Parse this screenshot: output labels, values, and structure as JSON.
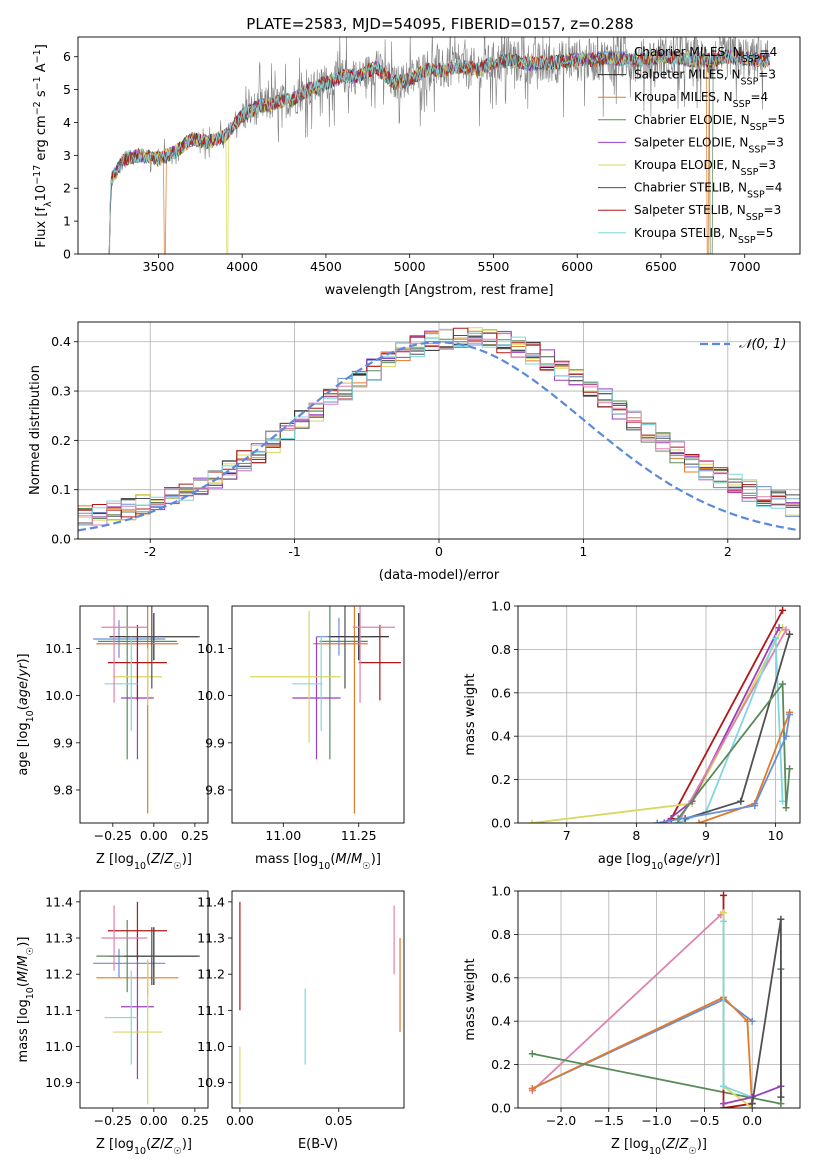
{
  "title": "PLATE=2583, MJD=54095, FIBERID=0157, z=0.288",
  "colors": {
    "Chabrier MILES": "#6a8fd8",
    "Salpeter MILES": "#2a2a2a",
    "Kroupa MILES": "#e07b2a",
    "Chabrier ELODIE": "#5a8a5a",
    "Salpeter ELODIE": "#9a3fc0",
    "Kroupa ELODIE": "#d8d860",
    "Chabrier STELIB": "#505050",
    "Salpeter STELIB": "#b01818",
    "Kroupa STELIB": "#7fd8e0",
    "data": "#808080",
    "pink": "#e080b0",
    "normal": "#5a8ad8"
  },
  "chart_data": [
    {
      "id": "spectrum",
      "type": "line",
      "title": "PLATE=2583, MJD=54095, FIBERID=0157, z=0.288",
      "xlabel": "wavelength [Angstrom, rest frame]",
      "ylabel": "Flux [fλ10⁻¹⁷ erg cm⁻² s⁻¹ A⁻¹]",
      "xlim": [
        3020,
        7330
      ],
      "ylim": [
        0,
        6.6
      ],
      "xticks": [
        3500,
        4000,
        4500,
        5000,
        5500,
        6000,
        6500,
        7000
      ],
      "yticks": [
        0,
        1,
        2,
        3,
        4,
        5,
        6
      ],
      "continuum": {
        "x": [
          3200,
          3220,
          3300,
          3400,
          3500,
          3600,
          3700,
          3800,
          3900,
          4000,
          4100,
          4200,
          4300,
          4400,
          4500,
          4600,
          4700,
          4800,
          4900,
          5000,
          5100,
          5200,
          5300,
          5400,
          5500,
          5600,
          5700,
          5800,
          5900,
          6000,
          6100,
          6200,
          6300,
          6400,
          6500,
          6600,
          6700,
          6800,
          6900,
          7000,
          7100
        ],
        "y": [
          0.0,
          2.3,
          2.9,
          3.0,
          2.9,
          3.1,
          3.5,
          3.4,
          3.6,
          4.2,
          4.5,
          4.6,
          4.7,
          5.0,
          5.2,
          5.4,
          5.4,
          5.7,
          5.2,
          5.3,
          5.6,
          5.6,
          5.7,
          5.6,
          5.8,
          5.9,
          5.8,
          5.8,
          5.85,
          5.9,
          5.9,
          5.95,
          5.9,
          5.9,
          6.0,
          5.95,
          5.9,
          5.9,
          6.0,
          5.95,
          5.9
        ]
      },
      "legend_position": "right",
      "series": [
        {
          "name": "Chabrier MILES, N_SSP=4",
          "nssp": "4"
        },
        {
          "name": "Salpeter MILES, N_SSP=3",
          "nssp": "3"
        },
        {
          "name": "Kroupa MILES, N_SSP=4",
          "nssp": "4"
        },
        {
          "name": "Chabrier ELODIE, N_SSP=5",
          "nssp": "5"
        },
        {
          "name": "Salpeter ELODIE, N_SSP=3",
          "nssp": "3"
        },
        {
          "name": "Kroupa ELODIE, N_SSP=3",
          "nssp": "3"
        },
        {
          "name": "Chabrier STELIB, N_SSP=4",
          "nssp": "4"
        },
        {
          "name": "Salpeter STELIB, N_SSP=3",
          "nssp": "3"
        },
        {
          "name": "Kroupa STELIB, N_SSP=5",
          "nssp": "5"
        }
      ],
      "legend": [
        {
          "prefix": "Chabrier MILES, N",
          "sub": "SSP",
          "suffix": "=4",
          "key": "Chabrier MILES"
        },
        {
          "prefix": "Salpeter MILES, N",
          "sub": "SSP",
          "suffix": "=3",
          "key": "Salpeter MILES"
        },
        {
          "prefix": "Kroupa MILES, N",
          "sub": "SSP",
          "suffix": "=4",
          "key": "Kroupa MILES"
        },
        {
          "prefix": "Chabrier ELODIE, N",
          "sub": "SSP",
          "suffix": "=5",
          "key": "Chabrier ELODIE"
        },
        {
          "prefix": "Salpeter ELODIE, N",
          "sub": "SSP",
          "suffix": "=3",
          "key": "Salpeter ELODIE"
        },
        {
          "prefix": "Kroupa ELODIE, N",
          "sub": "SSP",
          "suffix": "=3",
          "key": "Kroupa ELODIE"
        },
        {
          "prefix": "Chabrier STELIB, N",
          "sub": "SSP",
          "suffix": "=4",
          "key": "Chabrier STELIB"
        },
        {
          "prefix": "Salpeter STELIB, N",
          "sub": "SSP",
          "suffix": "=3",
          "key": "Salpeter STELIB"
        },
        {
          "prefix": "Kroupa STELIB, N",
          "sub": "SSP",
          "suffix": "=5",
          "key": "Kroupa STELIB"
        }
      ]
    },
    {
      "id": "residuals",
      "type": "area",
      "xlabel": "(data-model)/error",
      "ylabel": "Normed distribution",
      "xlim": [
        -2.5,
        2.5
      ],
      "ylim": [
        0,
        0.44
      ],
      "xticks": [
        -2,
        -1,
        0,
        1,
        2
      ],
      "yticks": [
        0.0,
        0.1,
        0.2,
        0.3,
        0.4
      ],
      "legend_label": "𝒩(0, 1)",
      "grid": true,
      "bin_width": 0.1,
      "normal": {
        "mean": 0,
        "sigma": 1
      }
    },
    {
      "id": "age_vs_Z",
      "type": "scatter",
      "xlabel": "Z [log10(Z/Z☉)]",
      "ylabel": "age  [log10(age/yr)]",
      "xlim": [
        -0.45,
        0.33
      ],
      "ylim": [
        9.73,
        10.19
      ],
      "xticks": [
        -0.25,
        0.0,
        0.25
      ],
      "xticklabels": [
        "−0.25",
        "0.00",
        "0.25"
      ],
      "yticks": [
        9.8,
        9.9,
        10.0,
        10.1
      ],
      "points": [
        {
          "key": "Chabrier MILES",
          "x": -0.15,
          "y": 10.12,
          "xerr": 0.22,
          "yerr": 0.04
        },
        {
          "key": "Salpeter MILES",
          "x": 0.0,
          "y": 10.125,
          "xerr": 0.27,
          "yerr": 0.05
        },
        {
          "key": "Kroupa MILES",
          "x": -0.1,
          "y": 10.11,
          "xerr": 0.25,
          "yerr": 0.36
        },
        {
          "key": "Chabrier ELODIE",
          "x": -0.1,
          "y": 10.115,
          "xerr": 0.24,
          "yerr": 0.25
        },
        {
          "key": "Salpeter ELODIE",
          "x": -0.1,
          "y": 9.995,
          "xerr": 0.1,
          "yerr": 0.13
        },
        {
          "key": "Kroupa ELODIE",
          "x": -0.1,
          "y": 10.04,
          "xerr": 0.15,
          "yerr": 0.06
        },
        {
          "key": "Chabrier STELIB",
          "x": 0.05,
          "y": 10.125,
          "xerr": 0.23,
          "yerr": 0.11
        },
        {
          "key": "Salpeter STELIB",
          "x": -0.1,
          "y": 10.07,
          "xerr": 0.18,
          "yerr": 0.08
        },
        {
          "key": "Kroupa STELIB",
          "x": -0.2,
          "y": 10.025,
          "xerr": 0.1,
          "yerr": 0.1
        },
        {
          "key": "pink",
          "x": -0.18,
          "y": 10.145,
          "xerr": 0.14,
          "yerr": 0.16
        }
      ]
    },
    {
      "id": "age_vs_mass",
      "type": "scatter",
      "xlabel": "mass [log10(M/M☉)]",
      "xlim": [
        10.83,
        11.4
      ],
      "ylim": [
        9.73,
        10.19
      ],
      "xticks": [
        11.0,
        11.25
      ],
      "xticklabels": [
        "11.00",
        "11.25"
      ],
      "yticks": [
        9.8,
        9.9,
        10.0,
        10.1
      ],
      "points": [
        {
          "key": "Chabrier MILES",
          "x": 11.23,
          "y": 10.125,
          "xerr": 0.12,
          "yerr": 0.04
        },
        {
          "key": "Salpeter MILES",
          "x": 11.25,
          "y": 10.125,
          "xerr": 0.1,
          "yerr": 0.05
        },
        {
          "key": "Kroupa MILES",
          "x": 11.19,
          "y": 10.11,
          "xerr": 0.09,
          "yerr": 0.36
        },
        {
          "key": "Chabrier ELODIE",
          "x": 11.2,
          "y": 10.115,
          "xerr": 0.08,
          "yerr": 0.25
        },
        {
          "key": "Salpeter ELODIE",
          "x": 11.11,
          "y": 9.995,
          "xerr": 0.08,
          "yerr": 0.13
        },
        {
          "key": "Kroupa ELODIE",
          "x": 11.04,
          "y": 10.04,
          "xerr": 0.15,
          "yerr": 0.14
        },
        {
          "key": "Chabrier STELIB",
          "x": 11.25,
          "y": 10.125,
          "xerr": 0.04,
          "yerr": 0.11
        },
        {
          "key": "Salpeter STELIB",
          "x": 11.32,
          "y": 10.07,
          "xerr": 0.07,
          "yerr": 0.08
        },
        {
          "key": "Kroupa STELIB",
          "x": 11.08,
          "y": 10.025,
          "xerr": 0.05,
          "yerr": 0.1
        },
        {
          "key": "pink",
          "x": 11.3,
          "y": 10.145,
          "xerr": 0.07,
          "yerr": 0.16
        }
      ]
    },
    {
      "id": "weight_vs_age",
      "type": "line",
      "xlabel": "age  [log10(age/yr)]",
      "ylabel": "mass weight",
      "xlim": [
        6.3,
        10.35
      ],
      "ylim": [
        0,
        1.0
      ],
      "xticks": [
        7,
        8,
        9,
        10
      ],
      "yticks": [
        0.0,
        0.2,
        0.4,
        0.6,
        0.8,
        1.0
      ],
      "grid": true,
      "series": [
        {
          "key": "Salpeter STELIB",
          "x": [
            8.5,
            10.1
          ],
          "y": [
            0.02,
            0.98
          ]
        },
        {
          "key": "Kroupa ELODIE",
          "x": [
            6.5,
            8.8,
            10.1
          ],
          "y": [
            0.0,
            0.09,
            0.9
          ]
        },
        {
          "key": "Salpeter ELODIE",
          "x": [
            8.4,
            8.8,
            10.05
          ],
          "y": [
            0.0,
            0.1,
            0.9
          ]
        },
        {
          "key": "pink",
          "x": [
            8.6,
            10.15
          ],
          "y": [
            0.0,
            0.89
          ]
        },
        {
          "key": "Kroupa STELIB",
          "x": [
            8.6,
            9.0,
            10.0,
            10.1
          ],
          "y": [
            0.0,
            0.05,
            0.85,
            0.1
          ]
        },
        {
          "key": "Chabrier STELIB",
          "x": [
            8.7,
            9.5,
            10.2
          ],
          "y": [
            0.02,
            0.1,
            0.87
          ]
        },
        {
          "key": "Chabrier ELODIE",
          "x": [
            8.6,
            10.1,
            10.15,
            10.2
          ],
          "y": [
            0.02,
            0.64,
            0.07,
            0.25
          ]
        },
        {
          "key": "Kroupa MILES",
          "x": [
            8.9,
            9.7,
            10.2
          ],
          "y": [
            0.0,
            0.09,
            0.51
          ]
        },
        {
          "key": "Chabrier MILES",
          "x": [
            8.3,
            9.7,
            10.15,
            10.2
          ],
          "y": [
            0.0,
            0.08,
            0.4,
            0.5
          ]
        }
      ]
    },
    {
      "id": "mass_vs_Z",
      "type": "scatter",
      "xlabel": "Z [log10(Z/Z☉)]",
      "ylabel": "mass [log10(M/M☉)]",
      "xlim": [
        -0.45,
        0.33
      ],
      "ylim": [
        10.83,
        11.43
      ],
      "xticks": [
        -0.25,
        0.0,
        0.25
      ],
      "xticklabels": [
        "−0.25",
        "0.00",
        "0.25"
      ],
      "yticks": [
        10.9,
        11.0,
        11.1,
        11.2,
        11.3,
        11.4
      ],
      "points": [
        {
          "key": "Chabrier MILES",
          "x": -0.15,
          "y": 11.23,
          "xerr": 0.22,
          "yerr": 0.04
        },
        {
          "key": "Salpeter MILES",
          "x": 0.0,
          "y": 11.25,
          "xerr": 0.27,
          "yerr": 0.08
        },
        {
          "key": "Kroupa MILES",
          "x": -0.1,
          "y": 11.19,
          "xerr": 0.25,
          "yerr": 0.05
        },
        {
          "key": "Chabrier ELODIE",
          "x": -0.1,
          "y": 11.25,
          "xerr": 0.25,
          "yerr": 0.1
        },
        {
          "key": "Salpeter ELODIE",
          "x": -0.1,
          "y": 11.11,
          "xerr": 0.1,
          "yerr": 0.2
        },
        {
          "key": "Kroupa ELODIE",
          "x": -0.1,
          "y": 11.04,
          "xerr": 0.15,
          "yerr": 0.2
        },
        {
          "key": "Chabrier STELIB",
          "x": 0.05,
          "y": 11.25,
          "xerr": 0.23,
          "yerr": 0.08
        },
        {
          "key": "Salpeter STELIB",
          "x": -0.1,
          "y": 11.32,
          "xerr": 0.18,
          "yerr": 0.08
        },
        {
          "key": "Kroupa STELIB",
          "x": -0.2,
          "y": 11.08,
          "xerr": 0.1,
          "yerr": 0.13
        },
        {
          "key": "pink",
          "x": -0.18,
          "y": 11.3,
          "xerr": 0.14,
          "yerr": 0.09
        }
      ]
    },
    {
      "id": "mass_vs_ebv",
      "type": "scatter",
      "xlabel": "E(B-V)",
      "xlim": [
        -0.004,
        0.083
      ],
      "ylim": [
        10.83,
        11.43
      ],
      "xticks": [
        0.0,
        0.05
      ],
      "xticklabels": [
        "0.00",
        "0.05"
      ],
      "yticks": [
        10.9,
        11.0,
        11.1,
        11.2,
        11.3,
        11.4
      ],
      "points": [
        {
          "key": "Salpeter STELIB",
          "x": 0.0,
          "yerr_range": [
            11.1,
            11.4
          ]
        },
        {
          "key": "Kroupa ELODIE",
          "x": 0.0,
          "yerr_range": [
            10.84,
            11.0
          ]
        },
        {
          "key": "Kroupa STELIB",
          "x": 0.033,
          "yerr_range": [
            10.95,
            11.16
          ]
        },
        {
          "key": "pink",
          "x": 0.078,
          "yerr_range": [
            11.2,
            11.39
          ]
        },
        {
          "key": "Kroupa MILES",
          "x": 0.081,
          "yerr_range": [
            11.04,
            11.3
          ]
        }
      ]
    },
    {
      "id": "weight_vs_Z",
      "type": "line",
      "xlabel": "Z [log10(Z/Z☉)]",
      "ylabel": "mass weight",
      "xlim": [
        -2.45,
        0.5
      ],
      "ylim": [
        0,
        1.0
      ],
      "xticks": [
        -2.0,
        -1.5,
        -1.0,
        -0.5,
        0.0
      ],
      "xticklabels": [
        "−2.0",
        "−1.5",
        "−1.0",
        "−0.5",
        "0.0"
      ],
      "yticks": [
        0.0,
        0.2,
        0.4,
        0.6,
        0.8,
        1.0
      ],
      "grid": true,
      "series": [
        {
          "key": "pink",
          "x": [
            -2.3,
            -0.33
          ],
          "y": [
            0.08,
            0.89
          ]
        },
        {
          "key": "Chabrier MILES",
          "x": [
            -2.3,
            -0.3,
            0.0
          ],
          "y": [
            0.09,
            0.5,
            0.4
          ]
        },
        {
          "key": "Kroupa MILES",
          "x": [
            -2.3,
            -0.3,
            -0.05,
            0.0
          ],
          "y": [
            0.09,
            0.51,
            0.4,
            0.0
          ]
        },
        {
          "key": "Chabrier ELODIE",
          "x": [
            -2.3,
            0.3,
            0.3
          ],
          "y": [
            0.25,
            0.02,
            0.64
          ]
        },
        {
          "key": "Salpeter STELIB",
          "x": [
            -0.3,
            -0.3,
            0.0
          ],
          "y": [
            0.98,
            0.0,
            0.02
          ]
        },
        {
          "key": "Kroupa ELODIE",
          "x": [
            -0.3,
            -0.3,
            0.0
          ],
          "y": [
            0.9,
            0.1,
            0.0
          ]
        },
        {
          "key": "Kroupa STELIB",
          "x": [
            -0.3,
            -0.3,
            0.0
          ],
          "y": [
            0.86,
            0.1,
            0.05
          ]
        },
        {
          "key": "Salpeter ELODIE",
          "x": [
            -0.3,
            0.0,
            0.3
          ],
          "y": [
            0.02,
            0.05,
            0.1
          ]
        },
        {
          "key": "Chabrier STELIB",
          "x": [
            0.0,
            0.3,
            0.3
          ],
          "y": [
            0.02,
            0.87,
            0.05
          ]
        }
      ]
    }
  ]
}
